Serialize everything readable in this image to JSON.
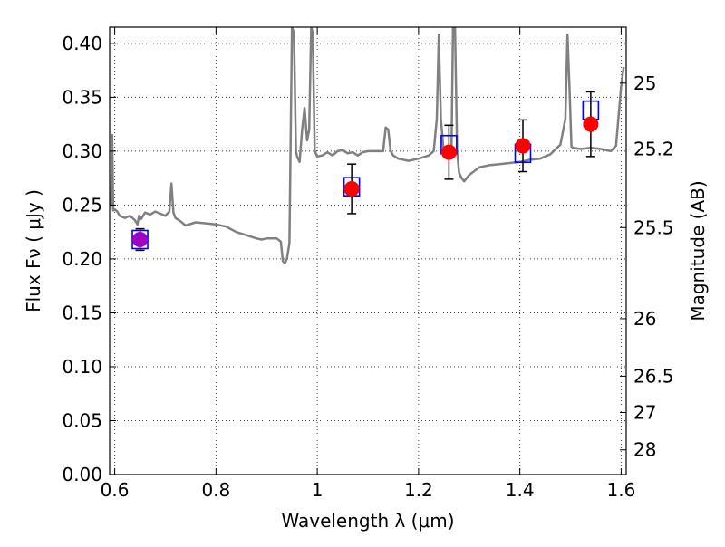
{
  "chart_data": {
    "type": "line",
    "title": "",
    "xlabel": "Wavelength  λ (μm)",
    "ylabel": "Flux  Fν  ( μJy )",
    "y2label": "Magnitude (AB)",
    "xlim": [
      0.59,
      1.61
    ],
    "ylim": [
      0.0,
      0.415
    ],
    "grid": true,
    "x_ticks": [
      0.6,
      0.8,
      1.0,
      1.2,
      1.4,
      1.6
    ],
    "x_tick_labels": [
      "0.6",
      "0.8",
      "1",
      "1.2",
      "1.4",
      "1.6"
    ],
    "y_ticks": [
      0.0,
      0.05,
      0.1,
      0.15,
      0.2,
      0.25,
      0.3,
      0.35,
      0.4
    ],
    "y_tick_labels": [
      "0.00",
      "0.05",
      "0.10",
      "0.15",
      "0.20",
      "0.25",
      "0.30",
      "0.35",
      "0.40"
    ],
    "y2_ticks": [
      25,
      25.2,
      25.5,
      26,
      26.5,
      27,
      28
    ],
    "y2_tick_labels": [
      "25",
      "25.2",
      "25.5",
      "26",
      "26.5",
      "27",
      "28"
    ],
    "colors": {
      "model": "#808080",
      "box": "#0000ff",
      "point": "#ff0000",
      "point_first": "#a000c0",
      "errorbar": "#000000"
    },
    "model_spectrum": {
      "x": [
        0.59,
        0.593,
        0.595,
        0.597,
        0.6,
        0.605,
        0.61,
        0.62,
        0.63,
        0.64,
        0.645,
        0.648,
        0.652,
        0.66,
        0.67,
        0.68,
        0.69,
        0.7,
        0.708,
        0.712,
        0.716,
        0.72,
        0.73,
        0.74,
        0.76,
        0.78,
        0.8,
        0.82,
        0.84,
        0.86,
        0.88,
        0.89,
        0.9,
        0.92,
        0.928,
        0.932,
        0.936,
        0.94,
        0.945,
        0.95,
        0.954,
        0.958,
        0.96,
        0.965,
        0.97,
        0.975,
        0.98,
        0.984,
        0.988,
        0.991,
        0.995,
        1.0,
        1.01,
        1.02,
        1.03,
        1.04,
        1.05,
        1.06,
        1.07,
        1.08,
        1.09,
        1.1,
        1.12,
        1.13,
        1.135,
        1.14,
        1.145,
        1.15,
        1.16,
        1.18,
        1.2,
        1.22,
        1.23,
        1.236,
        1.24,
        1.244,
        1.25,
        1.26,
        1.265,
        1.268,
        1.272,
        1.276,
        1.28,
        1.285,
        1.29,
        1.3,
        1.32,
        1.34,
        1.36,
        1.38,
        1.4,
        1.42,
        1.44,
        1.46,
        1.48,
        1.49,
        1.494,
        1.498,
        1.502,
        1.506,
        1.52,
        1.54,
        1.56,
        1.58,
        1.59,
        1.6,
        1.605
      ],
      "y": [
        0.25,
        0.25,
        0.315,
        0.245,
        0.246,
        0.244,
        0.24,
        0.238,
        0.24,
        0.236,
        0.232,
        0.24,
        0.237,
        0.243,
        0.241,
        0.244,
        0.242,
        0.24,
        0.244,
        0.27,
        0.243,
        0.238,
        0.235,
        0.231,
        0.234,
        0.233,
        0.232,
        0.23,
        0.225,
        0.222,
        0.219,
        0.218,
        0.219,
        0.219,
        0.216,
        0.198,
        0.196,
        0.2,
        0.215,
        0.415,
        0.41,
        0.3,
        0.295,
        0.29,
        0.32,
        0.34,
        0.31,
        0.32,
        0.415,
        0.41,
        0.3,
        0.295,
        0.296,
        0.299,
        0.296,
        0.3,
        0.301,
        0.298,
        0.299,
        0.296,
        0.299,
        0.3,
        0.3,
        0.3,
        0.322,
        0.32,
        0.3,
        0.296,
        0.293,
        0.291,
        0.293,
        0.296,
        0.3,
        0.33,
        0.408,
        0.33,
        0.298,
        0.3,
        0.3,
        0.415,
        0.415,
        0.3,
        0.28,
        0.275,
        0.272,
        0.278,
        0.285,
        0.287,
        0.288,
        0.289,
        0.29,
        0.292,
        0.293,
        0.297,
        0.306,
        0.33,
        0.408,
        0.36,
        0.304,
        0.303,
        0.302,
        0.303,
        0.302,
        0.3,
        0.305,
        0.36,
        0.378
      ]
    },
    "series": [
      {
        "marker": "open-square",
        "x": [
          0.65,
          1.068,
          1.26,
          1.406,
          1.54
        ],
        "y": [
          0.218,
          0.267,
          0.306,
          0.298,
          0.338
        ]
      },
      {
        "marker": "filled-circle",
        "x": [
          0.65,
          1.068,
          1.26,
          1.406,
          1.54
        ],
        "y": [
          0.218,
          0.265,
          0.299,
          0.305,
          0.325
        ],
        "yerr": [
          0.01,
          0.023,
          0.025,
          0.024,
          0.03
        ]
      }
    ]
  }
}
